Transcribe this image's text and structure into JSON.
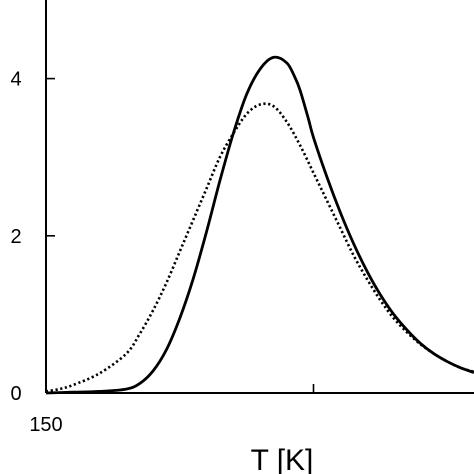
{
  "chart_data": {
    "type": "line",
    "title": "",
    "xlabel": "T  [K]",
    "ylabel": "",
    "xlim": [
      150,
      310
    ],
    "ylim": [
      0,
      5
    ],
    "x_ticks": [
      {
        "value": 150,
        "label": "150"
      },
      {
        "value": 250,
        "label": ""
      }
    ],
    "y_ticks": [
      {
        "value": 0,
        "label": "0"
      },
      {
        "value": 2,
        "label": "2"
      },
      {
        "value": 4,
        "label": "4"
      }
    ],
    "grid": false,
    "legend": "none",
    "series": [
      {
        "style": "solid",
        "color": "#000000",
        "x": [
          150,
          160,
          170,
          180,
          185,
          190,
          195,
          200,
          205,
          210,
          215,
          220,
          225,
          230,
          235,
          240,
          243,
          245,
          248,
          250,
          255,
          260,
          265,
          270,
          275,
          280,
          285,
          290,
          295,
          300,
          305,
          310
        ],
        "y": [
          0.0,
          0.01,
          0.02,
          0.05,
          0.12,
          0.28,
          0.55,
          0.95,
          1.45,
          2.05,
          2.7,
          3.3,
          3.8,
          4.12,
          4.27,
          4.2,
          4.02,
          3.85,
          3.5,
          3.25,
          2.75,
          2.3,
          1.9,
          1.55,
          1.25,
          1.0,
          0.8,
          0.63,
          0.5,
          0.4,
          0.32,
          0.26
        ]
      },
      {
        "style": "dotted",
        "color": "#000000",
        "x": [
          150,
          155,
          160,
          170,
          180,
          185,
          190,
          195,
          200,
          205,
          210,
          215,
          220,
          225,
          230,
          235,
          240,
          245,
          250,
          255,
          260,
          265,
          270,
          275,
          280,
          285,
          290,
          295,
          300,
          305,
          310
        ],
        "y": [
          0.02,
          0.05,
          0.1,
          0.25,
          0.5,
          0.75,
          1.05,
          1.4,
          1.8,
          2.2,
          2.6,
          3.0,
          3.3,
          3.55,
          3.67,
          3.65,
          3.45,
          3.15,
          2.8,
          2.45,
          2.1,
          1.75,
          1.45,
          1.18,
          0.95,
          0.77,
          0.62,
          0.5,
          0.4,
          0.32,
          0.27
        ]
      }
    ]
  }
}
